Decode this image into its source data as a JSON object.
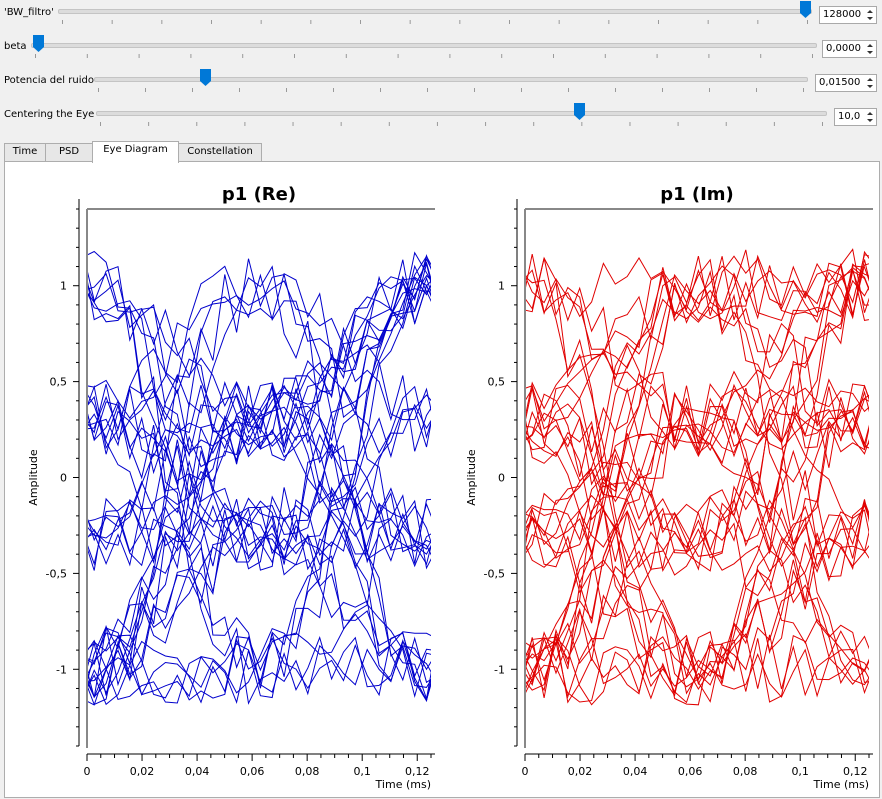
{
  "controls": [
    {
      "label": "'BW_filtro'",
      "value": "128000",
      "level": 0.993
    },
    {
      "label": "beta",
      "value": "0,0000",
      "level": 0.0
    },
    {
      "label": "Potencia del ruido",
      "value": "0,01500",
      "level": 0.15
    },
    {
      "label": "Centering the Eye",
      "value": "10,0",
      "level": 0.667
    }
  ],
  "tabs": [
    "Time",
    "PSD",
    "Eye Diagram",
    "Constellation"
  ],
  "active_tab": "Eye Diagram",
  "colors": {
    "accent": "#0078d7",
    "re_trace": "#0000cc",
    "im_trace": "#e00000"
  },
  "chart_data": [
    {
      "type": "line",
      "title": "p1 (Re)",
      "xlabel": "Time (ms)",
      "ylabel": "Amplitude",
      "xlim": [
        0,
        0.125
      ],
      "ylim": [
        -1.4,
        1.4
      ],
      "xticks": [
        "0",
        "0,02",
        "0,04",
        "0,06",
        "0,08",
        "0,1",
        "0,12"
      ],
      "yticks": [
        "-1",
        "-0,5",
        "0",
        "0,5",
        "1"
      ],
      "grid": false,
      "color": "#0000cc",
      "traces": 40,
      "seed": 11
    },
    {
      "type": "line",
      "title": "p1 (Im)",
      "xlabel": "Time (ms)",
      "ylabel": "Amplitude",
      "xlim": [
        0,
        0.125
      ],
      "ylim": [
        -1.4,
        1.4
      ],
      "xticks": [
        "0",
        "0,02",
        "0,04",
        "0,06",
        "0,08",
        "0,1",
        "0,12"
      ],
      "yticks": [
        "-1",
        "-0,5",
        "0",
        "0,5",
        "1"
      ],
      "grid": false,
      "color": "#e00000",
      "traces": 40,
      "seed": 29
    }
  ]
}
